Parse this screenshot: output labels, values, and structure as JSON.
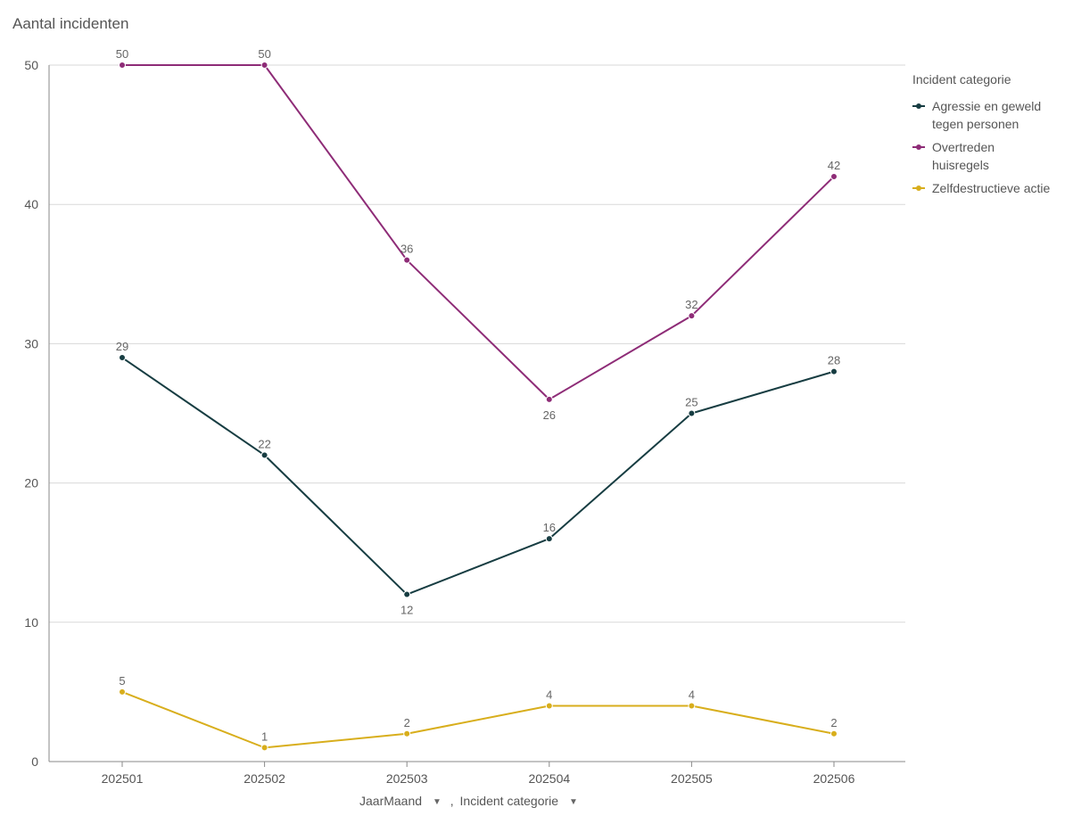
{
  "chart_data": {
    "type": "line",
    "title": "",
    "ylabel": "Aantal incidenten",
    "xlabel": "",
    "categories": [
      "202501",
      "202502",
      "202503",
      "202504",
      "202505",
      "202506"
    ],
    "yticks": [
      "0",
      "10",
      "20",
      "30",
      "40",
      "50"
    ],
    "ylim": [
      0,
      50
    ],
    "grid": true,
    "legend_title": "Incident categorie",
    "legend_position": "right",
    "series": [
      {
        "name": "Agressie en geweld tegen personen",
        "legend_lines": [
          "Agressie en geweld",
          "tegen personen"
        ],
        "color": "#173D42",
        "values": [
          29,
          22,
          12,
          16,
          25,
          28
        ],
        "label_positions": [
          "above",
          "above",
          "below",
          "above",
          "above",
          "above"
        ]
      },
      {
        "name": "Overtreden huisregels",
        "legend_lines": [
          "Overtreden",
          "huisregels"
        ],
        "color": "#8E2C77",
        "values": [
          50,
          50,
          36,
          26,
          32,
          42
        ],
        "label_positions": [
          "above",
          "above",
          "above",
          "below",
          "above",
          "above"
        ]
      },
      {
        "name": "Zelfdestructieve actie",
        "legend_lines": [
          "Zelfdestructieve actie"
        ],
        "color": "#D8AE1C",
        "values": [
          5,
          1,
          2,
          4,
          4,
          2
        ],
        "label_positions": [
          "above",
          "above",
          "above",
          "above",
          "above",
          "above"
        ]
      }
    ]
  },
  "axis_controls": {
    "primary": "JaarMaand",
    "separator": ",",
    "secondary": "Incident categorie"
  },
  "icons": {
    "dropdown": "caret-down-icon"
  },
  "colors": {
    "text": "#555555",
    "grid": "#d9d9d9",
    "axis": "#8a8a8a"
  }
}
